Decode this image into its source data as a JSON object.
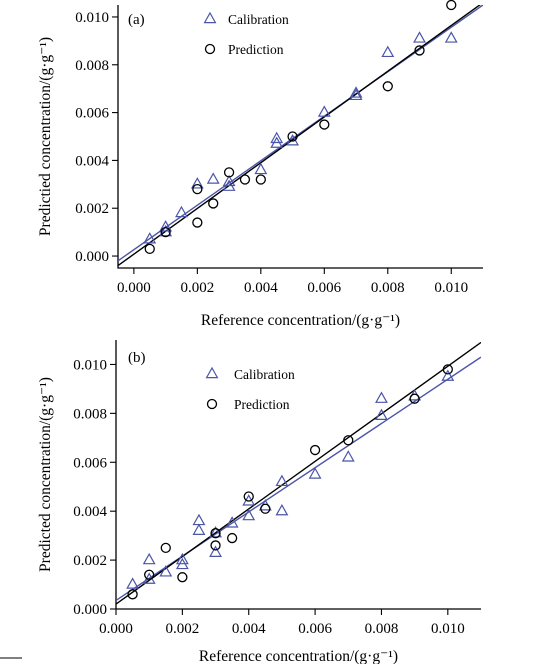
{
  "chart_data": [
    {
      "type": "scatter",
      "panel_label": "(a)",
      "xlabel": "Reference concentration/(g·g⁻¹)",
      "ylabel": "Predictied concentration/(g·g⁻¹)",
      "xlim": [
        -0.0005,
        0.011
      ],
      "ylim": [
        -0.0005,
        0.0105
      ],
      "xticks": [
        0.0,
        0.002,
        0.004,
        0.006,
        0.008,
        0.01
      ],
      "xtick_labels": [
        "0.000",
        "0.002",
        "0.004",
        "0.006",
        "0.008",
        "0.010"
      ],
      "yticks": [
        0.0,
        0.002,
        0.004,
        0.006,
        0.008,
        0.01
      ],
      "ytick_labels": [
        "0.000",
        "0.002",
        "0.004",
        "0.006",
        "0.008",
        "0.010"
      ],
      "legend": {
        "placement": "top-left",
        "entries": [
          "Calibration",
          "Prediction"
        ]
      },
      "series": [
        {
          "name": "Calibration",
          "marker": "triangle",
          "color": "#4a55a8",
          "points": [
            [
              0.0005,
              0.0007
            ],
            [
              0.001,
              0.001
            ],
            [
              0.001,
              0.0012
            ],
            [
              0.0015,
              0.0018
            ],
            [
              0.002,
              0.003
            ],
            [
              0.0025,
              0.0032
            ],
            [
              0.003,
              0.0029
            ],
            [
              0.003,
              0.0031
            ],
            [
              0.004,
              0.0036
            ],
            [
              0.0045,
              0.0047
            ],
            [
              0.0045,
              0.0049
            ],
            [
              0.005,
              0.0048
            ],
            [
              0.006,
              0.006
            ],
            [
              0.007,
              0.0068
            ],
            [
              0.007,
              0.0067
            ],
            [
              0.008,
              0.0085
            ],
            [
              0.009,
              0.0091
            ],
            [
              0.01,
              0.0091
            ]
          ]
        },
        {
          "name": "Prediction",
          "marker": "circle",
          "color": "#000000",
          "points": [
            [
              0.0005,
              0.0003
            ],
            [
              0.001,
              0.001
            ],
            [
              0.002,
              0.0028
            ],
            [
              0.002,
              0.0014
            ],
            [
              0.0025,
              0.0022
            ],
            [
              0.003,
              0.0035
            ],
            [
              0.0035,
              0.0032
            ],
            [
              0.004,
              0.0032
            ],
            [
              0.005,
              0.005
            ],
            [
              0.006,
              0.0055
            ],
            [
              0.008,
              0.0071
            ],
            [
              0.009,
              0.0086
            ],
            [
              0.01,
              0.0105
            ]
          ]
        }
      ],
      "fit_lines": [
        {
          "color": "#4a55a8",
          "from": [
            -0.0005,
            -0.0002
          ],
          "to": [
            0.011,
            0.0105
          ]
        },
        {
          "color": "#000000",
          "from": [
            -0.0005,
            -0.0004
          ],
          "to": [
            0.011,
            0.0106
          ]
        }
      ]
    },
    {
      "type": "scatter",
      "panel_label": "(b)",
      "xlabel": "Reference concentration/(g·g⁻¹)",
      "ylabel": "Predicted concentration/(g·g⁻¹)",
      "xlim": [
        0.0,
        0.011
      ],
      "ylim": [
        0.0,
        0.011
      ],
      "xticks": [
        0.0,
        0.002,
        0.004,
        0.006,
        0.008,
        0.01
      ],
      "xtick_labels": [
        "0.000",
        "0.002",
        "0.004",
        "0.006",
        "0.008",
        "0.010"
      ],
      "yticks": [
        0.0,
        0.002,
        0.004,
        0.006,
        0.008,
        0.01
      ],
      "ytick_labels": [
        "0.000",
        "0.002",
        "0.004",
        "0.006",
        "0.008",
        "0.010"
      ],
      "legend": {
        "placement": "top-left",
        "entries": [
          "Calibration",
          "Prediction"
        ]
      },
      "series": [
        {
          "name": "Calibration",
          "marker": "triangle",
          "color": "#4a55a8",
          "points": [
            [
              0.0005,
              0.001
            ],
            [
              0.001,
              0.002
            ],
            [
              0.001,
              0.0012
            ],
            [
              0.0015,
              0.0015
            ],
            [
              0.002,
              0.0018
            ],
            [
              0.002,
              0.002
            ],
            [
              0.0025,
              0.0036
            ],
            [
              0.0025,
              0.0032
            ],
            [
              0.003,
              0.0023
            ],
            [
              0.003,
              0.0031
            ],
            [
              0.0035,
              0.0035
            ],
            [
              0.004,
              0.0038
            ],
            [
              0.004,
              0.0044
            ],
            [
              0.0045,
              0.0042
            ],
            [
              0.005,
              0.0052
            ],
            [
              0.005,
              0.004
            ],
            [
              0.006,
              0.0055
            ],
            [
              0.007,
              0.0062
            ],
            [
              0.008,
              0.0086
            ],
            [
              0.008,
              0.0079
            ],
            [
              0.009,
              0.0087
            ],
            [
              0.01,
              0.0095
            ]
          ]
        },
        {
          "name": "Prediction",
          "marker": "circle",
          "color": "#000000",
          "points": [
            [
              0.0005,
              0.0006
            ],
            [
              0.001,
              0.0014
            ],
            [
              0.0015,
              0.0025
            ],
            [
              0.002,
              0.0013
            ],
            [
              0.003,
              0.0026
            ],
            [
              0.003,
              0.0031
            ],
            [
              0.0035,
              0.0029
            ],
            [
              0.004,
              0.0046
            ],
            [
              0.0045,
              0.0041
            ],
            [
              0.006,
              0.0065
            ],
            [
              0.007,
              0.0069
            ],
            [
              0.009,
              0.0086
            ],
            [
              0.01,
              0.0098
            ]
          ]
        }
      ],
      "fit_lines": [
        {
          "color": "#4a55a8",
          "from": [
            0.0,
            0.00035
          ],
          "to": [
            0.011,
            0.0103
          ]
        },
        {
          "color": "#000000",
          "from": [
            0.0,
            0.0002
          ],
          "to": [
            0.011,
            0.0109
          ]
        }
      ]
    }
  ]
}
